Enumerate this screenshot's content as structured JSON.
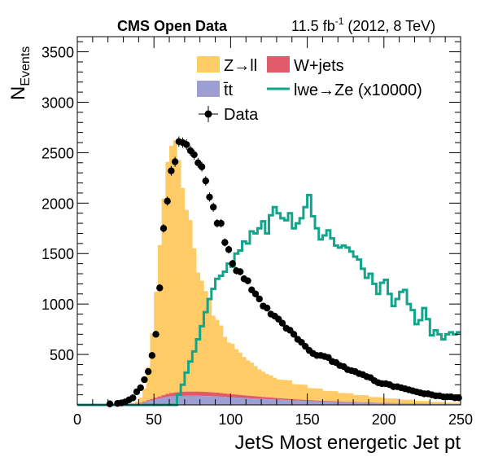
{
  "chart_data": {
    "type": "histogram",
    "header": {
      "left": "CMS Open Data",
      "right_lumi": "11.5 fb",
      "right_exp": "-1",
      "right_rest": " (2012, 8 TeV)"
    },
    "xlabel": "JetS Most energetic Jet pt",
    "ylabel_main": "N",
    "ylabel_sub": "Events",
    "xlim": [
      0,
      250
    ],
    "ylim": [
      0,
      3650
    ],
    "x_ticks": [
      0,
      50,
      100,
      150,
      200,
      250
    ],
    "y_ticks": [
      500,
      1000,
      1500,
      2000,
      2500,
      3000,
      3500
    ],
    "bin_width": 2.5,
    "legend": [
      {
        "name": "Z→ll",
        "kind": "fill",
        "color": "#ffcb66"
      },
      {
        "name": "W+jets",
        "kind": "fill",
        "color": "#e05a6a"
      },
      {
        "name": "t̄t",
        "kind": "fill",
        "color": "#9d9fd3"
      },
      {
        "name": "lwe→Ze (x10000)",
        "kind": "line",
        "color": "#11a58c"
      },
      {
        "name": "Data",
        "kind": "marker",
        "color": "#000000"
      }
    ],
    "stack": {
      "ttbar_points": [
        [
          0,
          0
        ],
        [
          32.5,
          0
        ],
        [
          40,
          10
        ],
        [
          45,
          30
        ],
        [
          50,
          50
        ],
        [
          55,
          70
        ],
        [
          60,
          85
        ],
        [
          70,
          90
        ],
        [
          80,
          90
        ],
        [
          90,
          85
        ],
        [
          100,
          75
        ],
        [
          120,
          60
        ],
        [
          140,
          45
        ],
        [
          160,
          32
        ],
        [
          180,
          24
        ],
        [
          200,
          17
        ],
        [
          225,
          12
        ],
        [
          250,
          8
        ]
      ],
      "wjets_points": [
        [
          0,
          0
        ],
        [
          32.5,
          0
        ],
        [
          40,
          5
        ],
        [
          45,
          10
        ],
        [
          50,
          15
        ],
        [
          55,
          20
        ],
        [
          60,
          30
        ],
        [
          65,
          38
        ],
        [
          70,
          42
        ],
        [
          80,
          42
        ],
        [
          90,
          38
        ],
        [
          100,
          32
        ],
        [
          120,
          20
        ],
        [
          140,
          12
        ],
        [
          160,
          8
        ],
        [
          180,
          5
        ],
        [
          200,
          3
        ],
        [
          250,
          1
        ]
      ],
      "zll_x": [
        0,
        32.5,
        35,
        37.5,
        40,
        42.5,
        45,
        47.5,
        50,
        52.5,
        55,
        57.5,
        60,
        62.5,
        65,
        67.5,
        70,
        72.5,
        75,
        77.5,
        80,
        82.5,
        85,
        87.5,
        90,
        92.5,
        95,
        97.5,
        100,
        102.5,
        105,
        107.5,
        110,
        112.5,
        115,
        117.5,
        120,
        122.5,
        125,
        127.5,
        130,
        140,
        150,
        160,
        170,
        180,
        190,
        200,
        210,
        220,
        230,
        240
      ],
      "zll_y": [
        0,
        0,
        8,
        20,
        50,
        130,
        330,
        650,
        1050,
        1500,
        1950,
        2300,
        2450,
        2500,
        2300,
        2020,
        1800,
        1700,
        1420,
        1180,
        1100,
        1000,
        920,
        760,
        720,
        670,
        560,
        510,
        500,
        450,
        420,
        380,
        350,
        330,
        300,
        270,
        250,
        230,
        220,
        200,
        185,
        150,
        120,
        100,
        85,
        70,
        55,
        45,
        35,
        25,
        18,
        12
      ]
    },
    "signal_line": {
      "x": [
        0,
        62.5,
        65,
        67.5,
        70,
        72.5,
        75,
        77.5,
        80,
        82.5,
        85,
        87.5,
        90,
        92.5,
        95,
        97.5,
        100,
        102.5,
        105,
        107.5,
        110,
        112.5,
        115,
        117.5,
        120,
        122.5,
        125,
        127.5,
        130,
        132.5,
        135,
        137.5,
        140,
        142.5,
        145,
        147.5,
        150,
        152.5,
        155,
        157.5,
        160,
        162.5,
        165,
        167.5,
        170,
        172.5,
        175,
        177.5,
        180,
        182.5,
        185,
        187.5,
        190,
        192.5,
        195,
        197.5,
        200,
        202.5,
        205,
        207.5,
        210,
        212.5,
        215,
        217.5,
        220,
        222.5,
        225,
        227.5,
        230,
        232.5,
        235,
        237.5,
        240,
        242.5,
        245,
        247.5
      ],
      "y": [
        0,
        0,
        100,
        200,
        320,
        430,
        530,
        650,
        780,
        920,
        1050,
        1150,
        1250,
        1280,
        1320,
        1400,
        1370,
        1500,
        1530,
        1620,
        1600,
        1720,
        1700,
        1750,
        1820,
        1700,
        1880,
        1960,
        1900,
        1850,
        1830,
        1900,
        1750,
        1800,
        1850,
        1960,
        2080,
        1870,
        1750,
        1640,
        1680,
        1730,
        1650,
        1580,
        1560,
        1580,
        1560,
        1520,
        1470,
        1440,
        1350,
        1260,
        1300,
        1200,
        1100,
        1210,
        1240,
        1100,
        980,
        1050,
        1120,
        1140,
        1000,
        940,
        800,
        840,
        960,
        850,
        690,
        740,
        700,
        650,
        700,
        720,
        700,
        720
      ]
    },
    "data_points": {
      "x": [
        21.25,
        26.25,
        28.75,
        31.25,
        33.75,
        36.25,
        38.75,
        41.25,
        43.75,
        46.25,
        48.75,
        51.25,
        53.75,
        56.25,
        58.75,
        61.25,
        63.75,
        66.25,
        68.75,
        71.25,
        73.75,
        76.25,
        78.75,
        81.25,
        83.75,
        86.25,
        88.75,
        91.25,
        93.75,
        96.25,
        98.75,
        101.25,
        103.75,
        106.25,
        108.75,
        111.25,
        113.75,
        116.25,
        118.75,
        121.25,
        123.75,
        126.25,
        128.75,
        131.25,
        133.75,
        136.25,
        138.75,
        141.25,
        143.75,
        146.25,
        148.75,
        151.25,
        153.75,
        156.25,
        158.75,
        161.25,
        163.75,
        166.25,
        168.75,
        171.25,
        173.75,
        176.25,
        178.75,
        181.25,
        183.75,
        186.25,
        188.75,
        191.25,
        193.75,
        196.25,
        198.75,
        201.25,
        203.75,
        206.25,
        208.75,
        211.25,
        213.75,
        216.25,
        218.75,
        221.25,
        223.75,
        226.25,
        228.75,
        231.25,
        233.75,
        236.25,
        238.75,
        241.25,
        243.75,
        246.25,
        248.75
      ],
      "y": [
        10,
        15,
        20,
        30,
        50,
        70,
        130,
        170,
        250,
        330,
        490,
        700,
        1160,
        1750,
        2020,
        2320,
        2410,
        2610,
        2600,
        2580,
        2520,
        2480,
        2400,
        2360,
        2220,
        2060,
        1960,
        1800,
        1800,
        1610,
        1540,
        1400,
        1330,
        1320,
        1250,
        1230,
        1140,
        1100,
        1050,
        980,
        960,
        900,
        880,
        850,
        810,
        760,
        740,
        700,
        650,
        620,
        580,
        540,
        510,
        490,
        490,
        480,
        470,
        430,
        420,
        390,
        380,
        350,
        340,
        330,
        310,
        300,
        280,
        270,
        240,
        220,
        210,
        210,
        200,
        180,
        180,
        170,
        160,
        150,
        140,
        130,
        120,
        110,
        110,
        100,
        90,
        90,
        80,
        80,
        80,
        70,
        70
      ]
    }
  }
}
